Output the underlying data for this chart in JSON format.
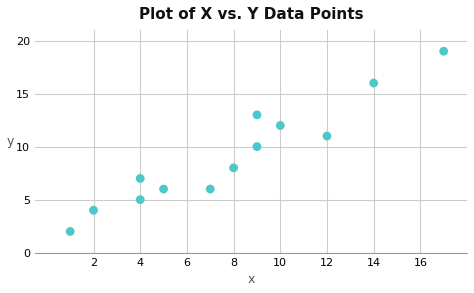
{
  "x": [
    1,
    2,
    4,
    4,
    5,
    7,
    8,
    9,
    9,
    10,
    12,
    14,
    17
  ],
  "y": [
    2,
    4,
    7,
    5,
    6,
    6,
    8,
    13,
    10,
    12,
    11,
    16,
    19
  ],
  "title": "Plot of X vs. Y Data Points",
  "xlabel": "x",
  "ylabel": "y",
  "xlim": [
    -0.5,
    18
  ],
  "ylim": [
    0,
    21
  ],
  "xticks": [
    2,
    4,
    6,
    8,
    10,
    12,
    14,
    16
  ],
  "yticks": [
    0,
    5,
    10,
    15,
    20
  ],
  "marker_color": "#4DC8C8",
  "marker_size": 40,
  "background_color": "#FFFFFF",
  "grid_color": "#CCCCCC",
  "title_fontsize": 11,
  "label_fontsize": 9,
  "tick_fontsize": 8
}
